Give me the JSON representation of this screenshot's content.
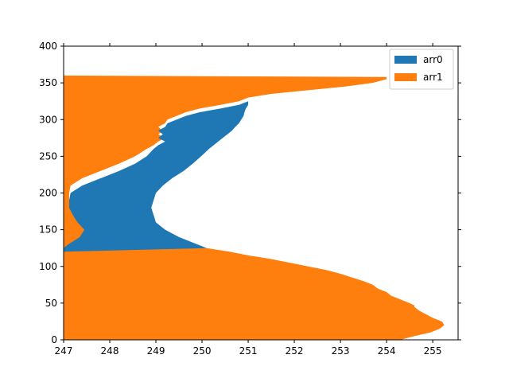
{
  "chart_data": {
    "type": "area",
    "orientation": "horizontal-fill-betweenx",
    "title": "",
    "xlabel": "",
    "ylabel": "",
    "xlim": [
      247,
      255.55
    ],
    "ylim": [
      0,
      400
    ],
    "xticks": [
      247,
      248,
      249,
      250,
      251,
      252,
      253,
      254,
      255
    ],
    "yticks": [
      0,
      50,
      100,
      150,
      200,
      250,
      300,
      350,
      400
    ],
    "grid": false,
    "legend_position": "upper-right",
    "series": [
      {
        "name": "arr0",
        "color": "#1f77b4",
        "y": [
          0,
          10,
          20,
          30,
          40,
          50,
          60,
          70,
          80,
          90,
          100,
          110,
          120,
          125,
          130,
          140,
          150,
          160,
          170,
          180,
          190,
          200,
          210,
          220,
          230,
          240,
          250,
          260,
          265,
          270,
          275,
          280,
          285,
          290,
          295,
          300,
          305,
          310,
          315,
          320,
          325,
          328,
          330,
          340,
          350,
          358
        ],
        "x_left": [
          247,
          247,
          247,
          247,
          247,
          247,
          247,
          247,
          247,
          247,
          247,
          247,
          247,
          247,
          247.1,
          247.35,
          247.45,
          247.3,
          247.2,
          247.12,
          247.12,
          247.15,
          247.4,
          247.8,
          248.2,
          248.55,
          248.8,
          248.95,
          249.05,
          249.2,
          249.05,
          249.15,
          249.05,
          249.2,
          249.25,
          249.45,
          249.65,
          249.95,
          250.4,
          250.8,
          251.0,
          251.0,
          251.05,
          251.2,
          251.3,
          251.4
        ],
        "x_right": [
          247,
          247,
          247,
          247,
          247,
          247,
          247,
          247,
          247,
          247,
          247,
          247,
          247,
          250.1,
          249.9,
          249.5,
          249.2,
          249.0,
          248.95,
          248.9,
          248.95,
          249.0,
          249.15,
          249.35,
          249.6,
          249.8,
          249.98,
          250.15,
          250.25,
          250.35,
          250.45,
          250.55,
          250.65,
          250.72,
          250.8,
          250.85,
          250.9,
          250.92,
          250.95,
          251.0,
          251.0,
          251.0,
          251.05,
          251.2,
          251.3,
          251.4
        ]
      },
      {
        "name": "arr1",
        "color": "#ff7f0e",
        "y": [
          0,
          5,
          10,
          15,
          20,
          25,
          30,
          35,
          40,
          45,
          47,
          50,
          55,
          60,
          65,
          70,
          75,
          80,
          85,
          90,
          95,
          100,
          105,
          110,
          115,
          120,
          125,
          130,
          140,
          150,
          160,
          170,
          180,
          190,
          200,
          210,
          220,
          230,
          240,
          250,
          260,
          265,
          270,
          275,
          280,
          285,
          290,
          295,
          300,
          305,
          310,
          315,
          320,
          325,
          330,
          335,
          340,
          345,
          350,
          355,
          358,
          360
        ],
        "x_right": [
          254.3,
          254.6,
          254.95,
          255.15,
          255.25,
          255.2,
          255.0,
          254.85,
          254.7,
          254.6,
          254.6,
          254.5,
          254.3,
          254.1,
          254.0,
          253.8,
          253.7,
          253.5,
          253.25,
          253.0,
          252.7,
          252.3,
          251.9,
          251.5,
          251.0,
          250.6,
          250.1,
          249.6,
          248.6,
          247.95,
          247.6,
          247.35,
          247.2,
          247.12,
          247.12,
          247.15,
          247.4,
          247.8,
          248.2,
          248.55,
          248.8,
          248.95,
          249.05,
          249.2,
          249.05,
          249.15,
          249.05,
          249.2,
          249.25,
          249.45,
          249.65,
          249.95,
          250.4,
          250.8,
          251.0,
          251.5,
          252.3,
          253.1,
          253.7,
          254.0,
          254.0,
          247
        ]
      }
    ]
  }
}
